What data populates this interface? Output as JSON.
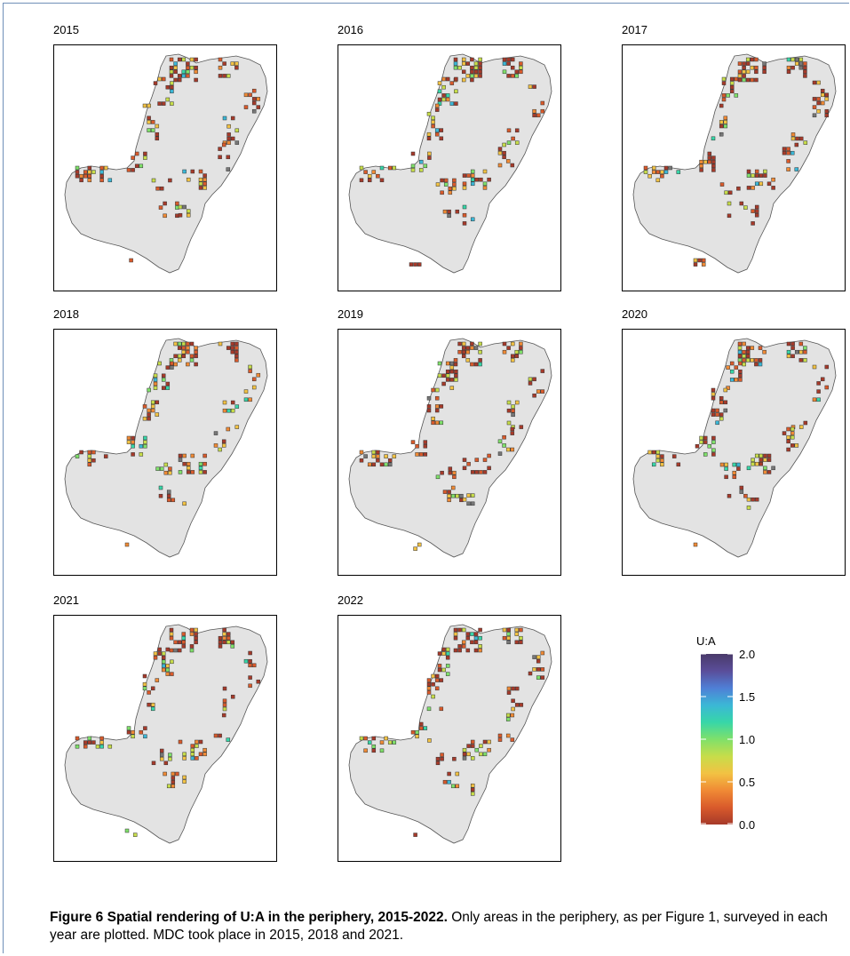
{
  "figure": {
    "panels": [
      {
        "year": "2015",
        "seed": 15
      },
      {
        "year": "2016",
        "seed": 16
      },
      {
        "year": "2017",
        "seed": 17
      },
      {
        "year": "2018",
        "seed": 18
      },
      {
        "year": "2019",
        "seed": 19
      },
      {
        "year": "2020",
        "seed": 20
      },
      {
        "year": "2021",
        "seed": 21
      },
      {
        "year": "2022",
        "seed": 22
      }
    ],
    "legend": {
      "title": "U:A",
      "ticks": [
        "2.0",
        "1.5",
        "1.0",
        "0.5",
        "0.0"
      ],
      "range": [
        0,
        2
      ],
      "colors": [
        "#a63a2a",
        "#d95a2b",
        "#f08a35",
        "#f2c243",
        "#c7dd4a",
        "#7fe06a",
        "#37d6a8",
        "#3bb7d6",
        "#4f7fd6",
        "#5a4e9a",
        "#4a3a6a"
      ]
    },
    "caption": {
      "label": "Figure 6",
      "title": "Spatial rendering of U:A in the periphery, 2015-2022.",
      "text": "Only areas in the periphery, as per Figure 1, surveyed in each year are plotted. MDC took place in 2015, 2018 and 2021."
    }
  },
  "chart_data": {
    "type": "heatmap",
    "title": "",
    "xlabel": "",
    "ylabel": "",
    "legend_title": "U:A",
    "color_range": [
      0,
      2
    ],
    "facets": [
      "2015",
      "2016",
      "2017",
      "2018",
      "2019",
      "2020",
      "2021",
      "2022"
    ]
  }
}
